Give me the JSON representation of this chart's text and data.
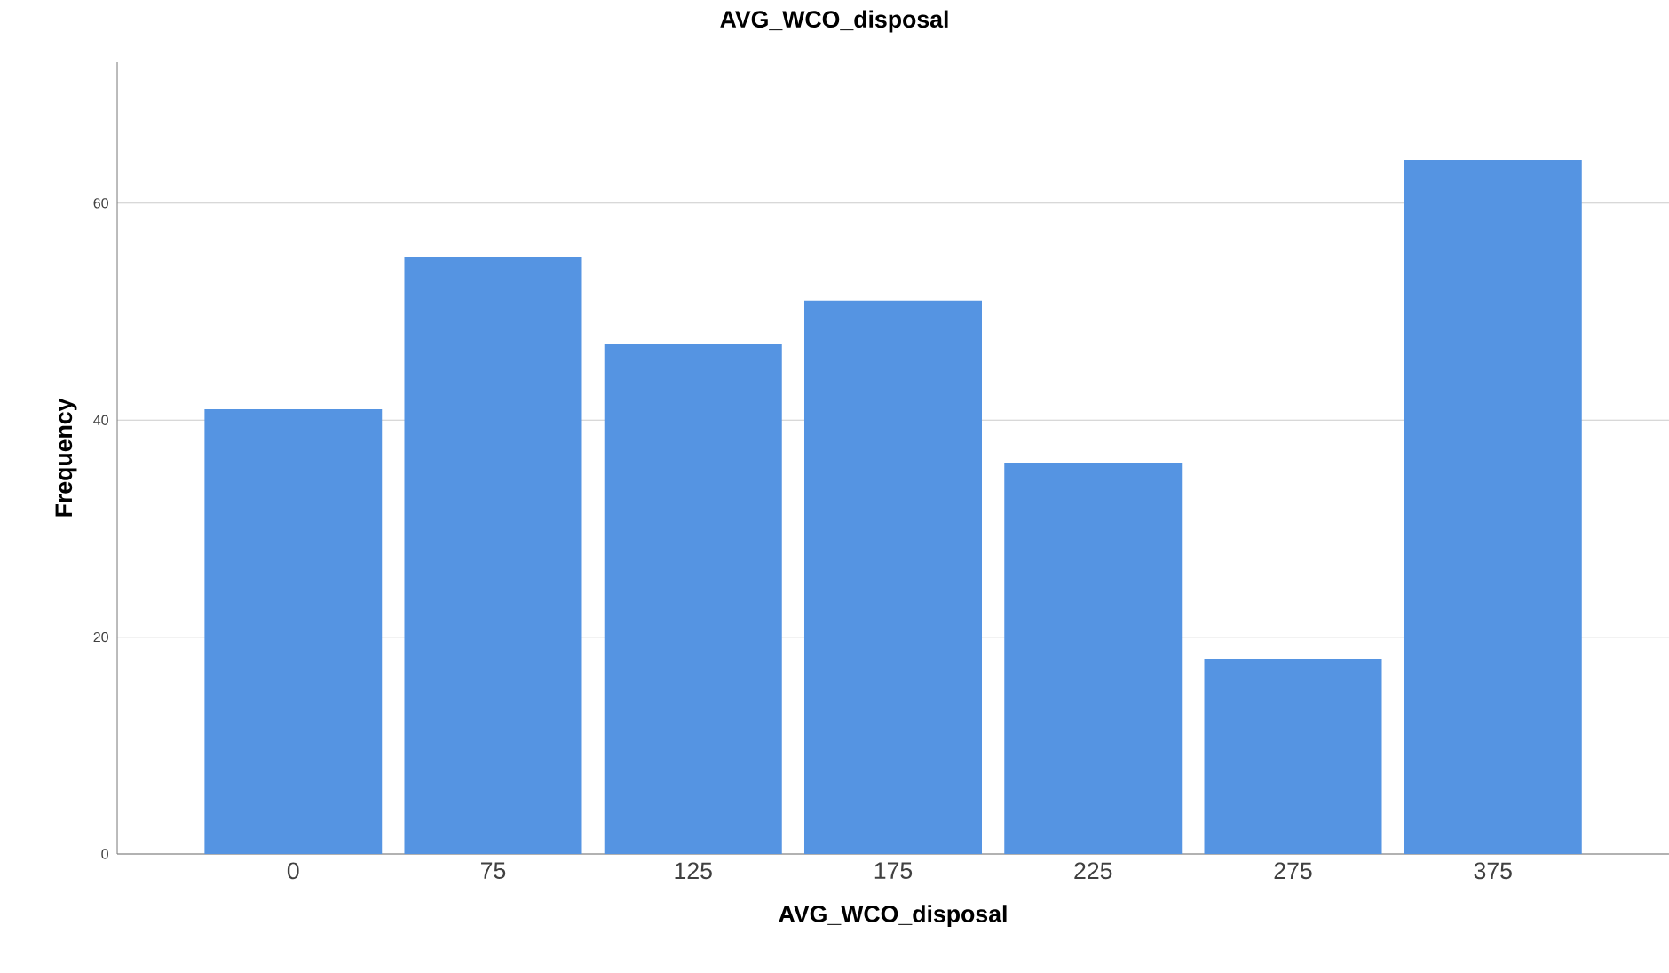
{
  "chart_data": {
    "type": "bar",
    "title": "AVG_WCO_disposal",
    "xlabel": "AVG_WCO_disposal",
    "ylabel": "Frequency",
    "categories": [
      "0",
      "75",
      "125",
      "175",
      "225",
      "275",
      "375"
    ],
    "values": [
      41,
      55,
      47,
      51,
      36,
      18,
      64
    ],
    "color": "#5594e2",
    "ylim": [
      0,
      73
    ],
    "yticks": [
      0,
      20,
      40,
      60
    ],
    "grid": "y"
  }
}
